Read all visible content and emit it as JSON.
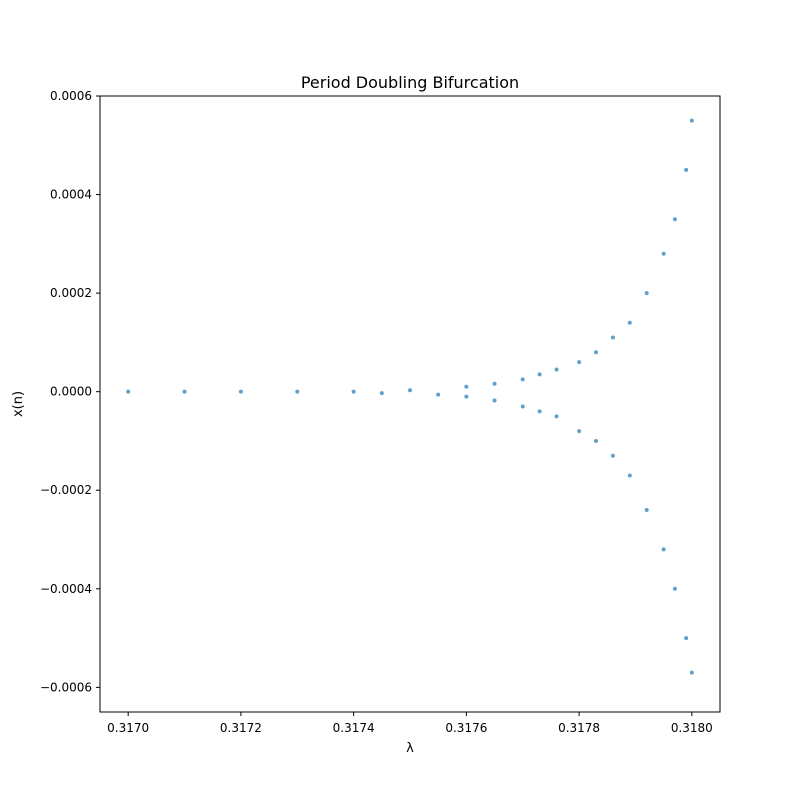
{
  "chart_data": {
    "type": "scatter",
    "title": "Period Doubling Bifurcation",
    "xlabel": "λ",
    "ylabel": "x(n)",
    "xlim": [
      0.31695,
      0.31805
    ],
    "ylim": [
      -0.00065,
      0.0006
    ],
    "xticks": [
      0.317,
      0.3172,
      0.3174,
      0.3176,
      0.3178,
      0.318
    ],
    "xtick_labels": [
      "0.3170",
      "0.3172",
      "0.3174",
      "0.3176",
      "0.3178",
      "0.3180"
    ],
    "yticks": [
      -0.0006,
      -0.0004,
      -0.0002,
      0.0,
      0.0002,
      0.0004,
      0.0006
    ],
    "ytick_labels": [
      "−0.0006",
      "−0.0004",
      "−0.0002",
      "0.0000",
      "0.0002",
      "0.0004",
      "0.0006"
    ],
    "grid": false,
    "color": "#1f77b4",
    "series": [
      {
        "points": [
          [
            0.317,
            0.0
          ],
          [
            0.3171,
            0.0
          ],
          [
            0.3172,
            0.0
          ],
          [
            0.3173,
            0.0
          ],
          [
            0.3174,
            0.0
          ],
          [
            0.31745,
            -3e-06
          ],
          [
            0.3175,
            3e-06
          ],
          [
            0.31755,
            -6e-06
          ],
          [
            0.3176,
            1e-05
          ],
          [
            0.3176,
            -1e-05
          ],
          [
            0.31765,
            1.6e-05
          ],
          [
            0.31765,
            -1.8e-05
          ],
          [
            0.3177,
            2.5e-05
          ],
          [
            0.3177,
            -3e-05
          ],
          [
            0.31773,
            3.5e-05
          ],
          [
            0.31773,
            -4e-05
          ],
          [
            0.31776,
            4.5e-05
          ],
          [
            0.31776,
            -5e-05
          ],
          [
            0.3178,
            6e-05
          ],
          [
            0.3178,
            -8e-05
          ],
          [
            0.31783,
            8e-05
          ],
          [
            0.31783,
            -0.0001
          ],
          [
            0.31786,
            0.00011
          ],
          [
            0.31786,
            -0.00013
          ],
          [
            0.31789,
            0.00014
          ],
          [
            0.31789,
            -0.00017
          ],
          [
            0.31792,
            0.0002
          ],
          [
            0.31792,
            -0.00024
          ],
          [
            0.31795,
            0.00028
          ],
          [
            0.31795,
            -0.00032
          ],
          [
            0.31797,
            0.00035
          ],
          [
            0.31797,
            -0.0004
          ],
          [
            0.31799,
            0.00045
          ],
          [
            0.31799,
            -0.0005
          ],
          [
            0.318,
            0.00055
          ],
          [
            0.318,
            -0.00057
          ]
        ]
      }
    ]
  }
}
